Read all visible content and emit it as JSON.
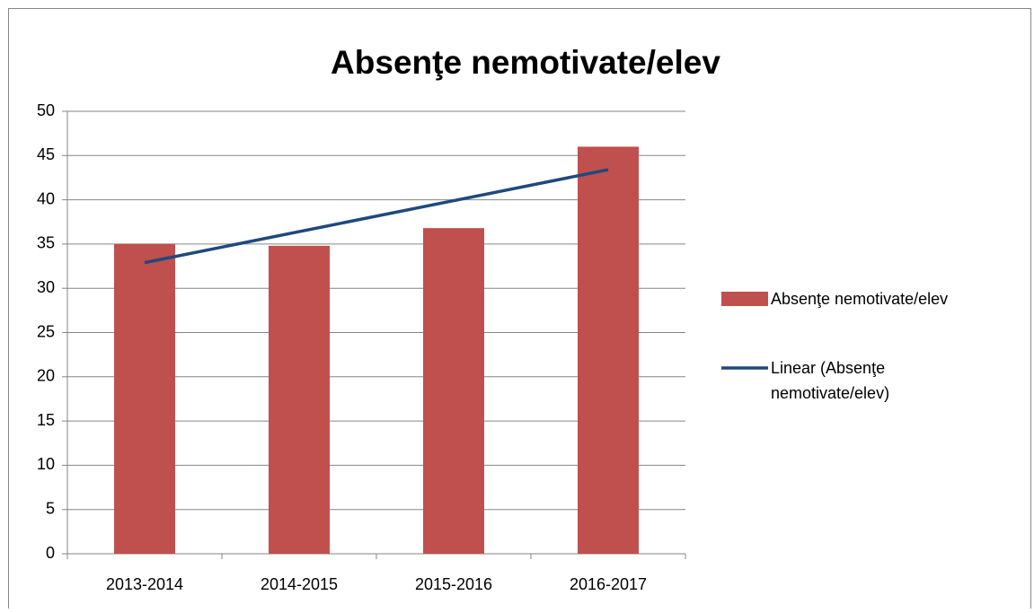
{
  "chart_data": {
    "type": "bar",
    "title": "Absenţe nemotivate/elev",
    "categories": [
      "2013-2014",
      "2014-2015",
      "2015-2016",
      "2016-2017"
    ],
    "series": [
      {
        "name": "Absenţe nemotivate/elev",
        "color": "#c0504d",
        "type": "bar",
        "values": [
          35,
          34.8,
          36.8,
          46
        ]
      },
      {
        "name": "Linear (Absenţe nemotivate/elev)",
        "color": "#1f497d",
        "type": "line",
        "values": [
          32.9,
          36.4,
          39.9,
          43.4
        ]
      }
    ],
    "ylim": [
      0,
      50
    ],
    "yticks": [
      0,
      5,
      10,
      15,
      20,
      25,
      30,
      35,
      40,
      45,
      50
    ],
    "grid": true,
    "legend": "right"
  }
}
